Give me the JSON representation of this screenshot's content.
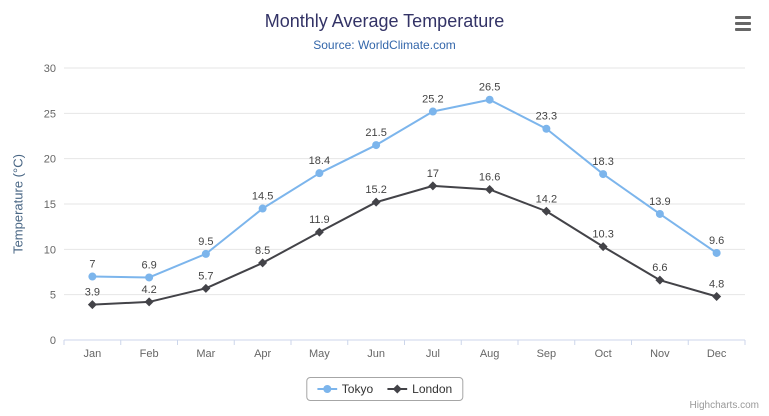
{
  "credits": "Highcharts.com",
  "toolbar": {
    "menu_icon": "hamburger-menu-icon"
  },
  "chart_data": {
    "type": "line",
    "title": "Monthly Average Temperature",
    "subtitle": "Source: WorldClimate.com",
    "categories": [
      "Jan",
      "Feb",
      "Mar",
      "Apr",
      "May",
      "Jun",
      "Jul",
      "Aug",
      "Sep",
      "Oct",
      "Nov",
      "Dec"
    ],
    "series": [
      {
        "name": "Tokyo",
        "color": "#7cb5ec",
        "marker": "circle",
        "values": [
          7,
          6.9,
          9.5,
          14.5,
          18.4,
          21.5,
          25.2,
          26.5,
          23.3,
          18.3,
          13.9,
          9.6
        ]
      },
      {
        "name": "London",
        "color": "#434348",
        "marker": "diamond",
        "values": [
          3.9,
          4.2,
          5.7,
          8.5,
          11.9,
          15.2,
          17,
          16.6,
          14.2,
          10.3,
          6.6,
          4.8
        ]
      }
    ],
    "xlabel": "",
    "ylabel": "Temperature (°C)",
    "ylim": [
      0,
      30
    ],
    "ytick_interval": 5,
    "grid": true,
    "data_labels": true,
    "legend_position": "bottom",
    "colors": {
      "gridline": "#e6e6e6",
      "axis_line": "#ccd6eb",
      "tick_label": "#666666"
    }
  }
}
